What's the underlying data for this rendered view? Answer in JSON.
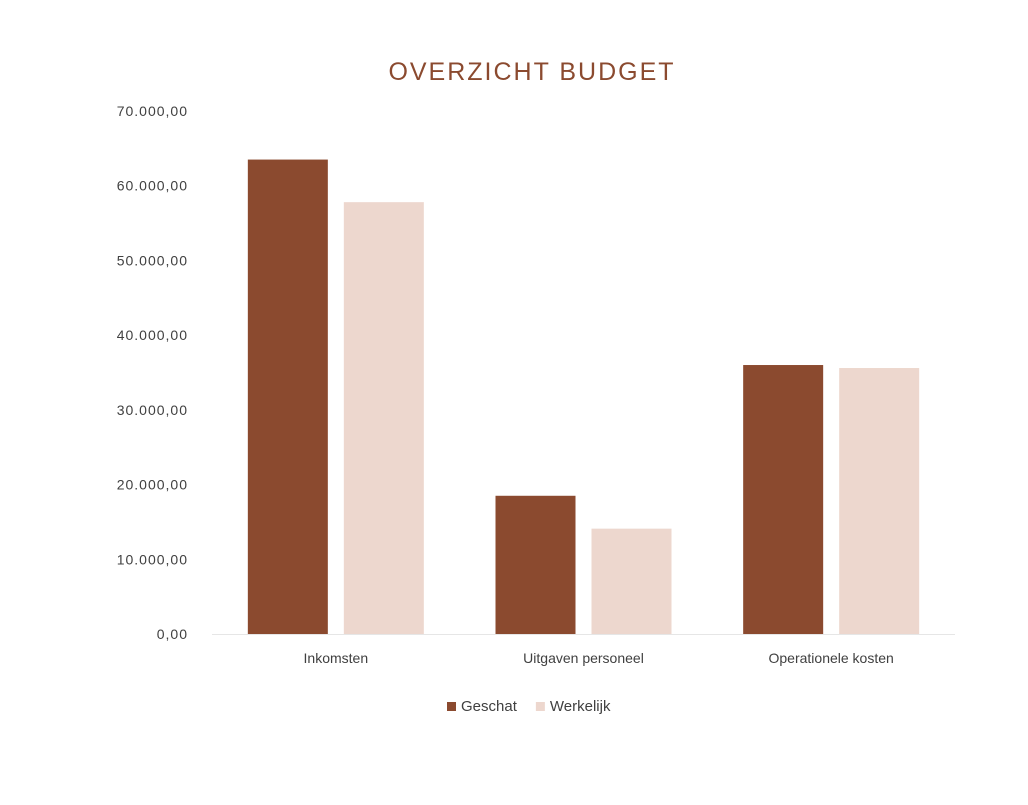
{
  "chart_data": {
    "type": "bar",
    "title": "OVERZICHT BUDGET",
    "xlabel": "",
    "ylabel": "",
    "categories": [
      "Inkomsten",
      "Uitgaven personeel",
      "Operationele kosten"
    ],
    "series": [
      {
        "name": "Geschat",
        "values": [
          63500,
          18500,
          36000
        ]
      },
      {
        "name": "Werkelijk",
        "values": [
          57800,
          14100,
          35600
        ]
      }
    ],
    "ylim": [
      0,
      70000
    ],
    "yticks": [
      0,
      10000,
      20000,
      30000,
      40000,
      50000,
      60000,
      70000
    ],
    "ytick_labels": [
      "0,00",
      "10.000,00",
      "20.000,00",
      "30.000,00",
      "40.000,00",
      "50.000,00",
      "60.000,00",
      "70.000,00"
    ],
    "grid": false,
    "legend_position": "bottom",
    "colors": {
      "Geschat": "#8B4A2F",
      "Werkelijk": "#EDD7CE",
      "title": "#8B4A2F",
      "axis_text": "#404040",
      "baseline": "#E6E6E6"
    }
  }
}
